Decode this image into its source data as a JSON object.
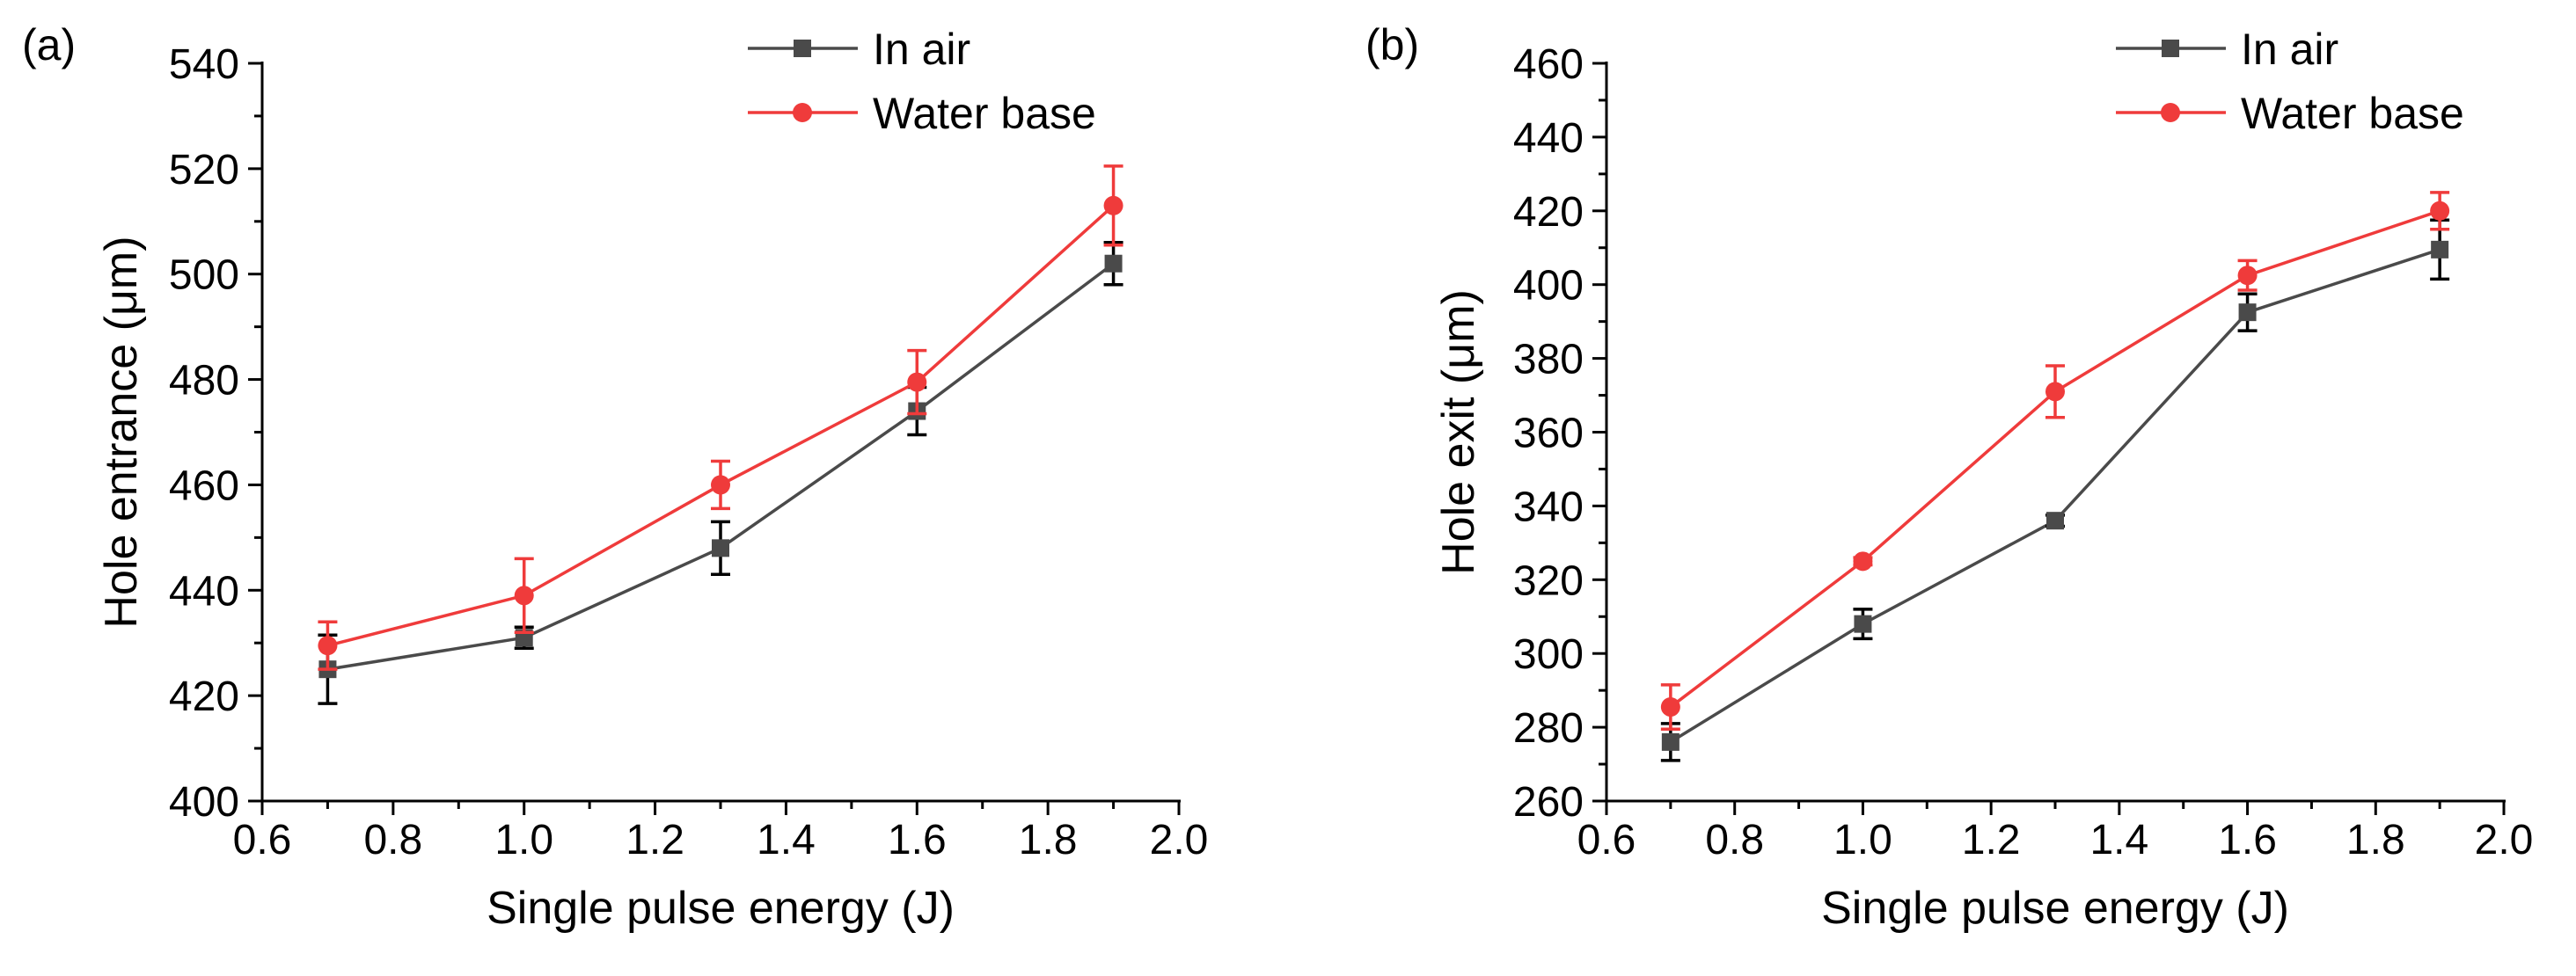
{
  "chart_data": [
    {
      "type": "line",
      "panel_label": "(a)",
      "xlabel": "Single pulse energy (J)",
      "ylabel": "Hole entrance (μm)",
      "xlim": [
        0.6,
        2.0
      ],
      "ylim": [
        400,
        540
      ],
      "xticks": [
        "0.6",
        "0.8",
        "1.0",
        "1.2",
        "1.4",
        "1.6",
        "1.8",
        "2.0"
      ],
      "yticks": [
        "400",
        "420",
        "440",
        "460",
        "480",
        "500",
        "520",
        "540"
      ],
      "x": [
        0.7,
        1.0,
        1.3,
        1.6,
        1.9
      ],
      "legend_position": "top-right",
      "series": [
        {
          "name": "In air",
          "marker": "square",
          "color": "#4a4a4a",
          "errcolor": "#000000",
          "values": [
            425,
            431,
            448,
            474,
            502
          ],
          "err": [
            6.5,
            2,
            5,
            4.5,
            4
          ]
        },
        {
          "name": "Water base",
          "marker": "circle",
          "color": "#ef3b3b",
          "errcolor": "#ef3b3b",
          "values": [
            429.5,
            439,
            460,
            479.5,
            513
          ],
          "err": [
            4.5,
            7,
            4.5,
            6,
            7.5
          ]
        }
      ]
    },
    {
      "type": "line",
      "panel_label": "(b)",
      "xlabel": "Single pulse energy (J)",
      "ylabel": "Hole exit (μm)",
      "xlim": [
        0.6,
        2.0
      ],
      "ylim": [
        260,
        460
      ],
      "xticks": [
        "0.6",
        "0.8",
        "1.0",
        "1.2",
        "1.4",
        "1.6",
        "1.8",
        "2.0"
      ],
      "yticks": [
        "260",
        "280",
        "300",
        "320",
        "340",
        "360",
        "380",
        "400",
        "420",
        "440",
        "460"
      ],
      "x": [
        0.7,
        1.0,
        1.3,
        1.6,
        1.9
      ],
      "legend_position": "top-right",
      "series": [
        {
          "name": "In air",
          "marker": "square",
          "color": "#4a4a4a",
          "errcolor": "#000000",
          "values": [
            276,
            308,
            336,
            392.5,
            409.5
          ],
          "err": [
            5,
            4,
            1.5,
            5,
            8
          ]
        },
        {
          "name": "Water base",
          "marker": "circle",
          "color": "#ef3b3b",
          "errcolor": "#ef3b3b",
          "values": [
            285.5,
            325,
            371,
            402.5,
            420
          ],
          "err": [
            6,
            1,
            7,
            4,
            5
          ]
        }
      ]
    }
  ]
}
